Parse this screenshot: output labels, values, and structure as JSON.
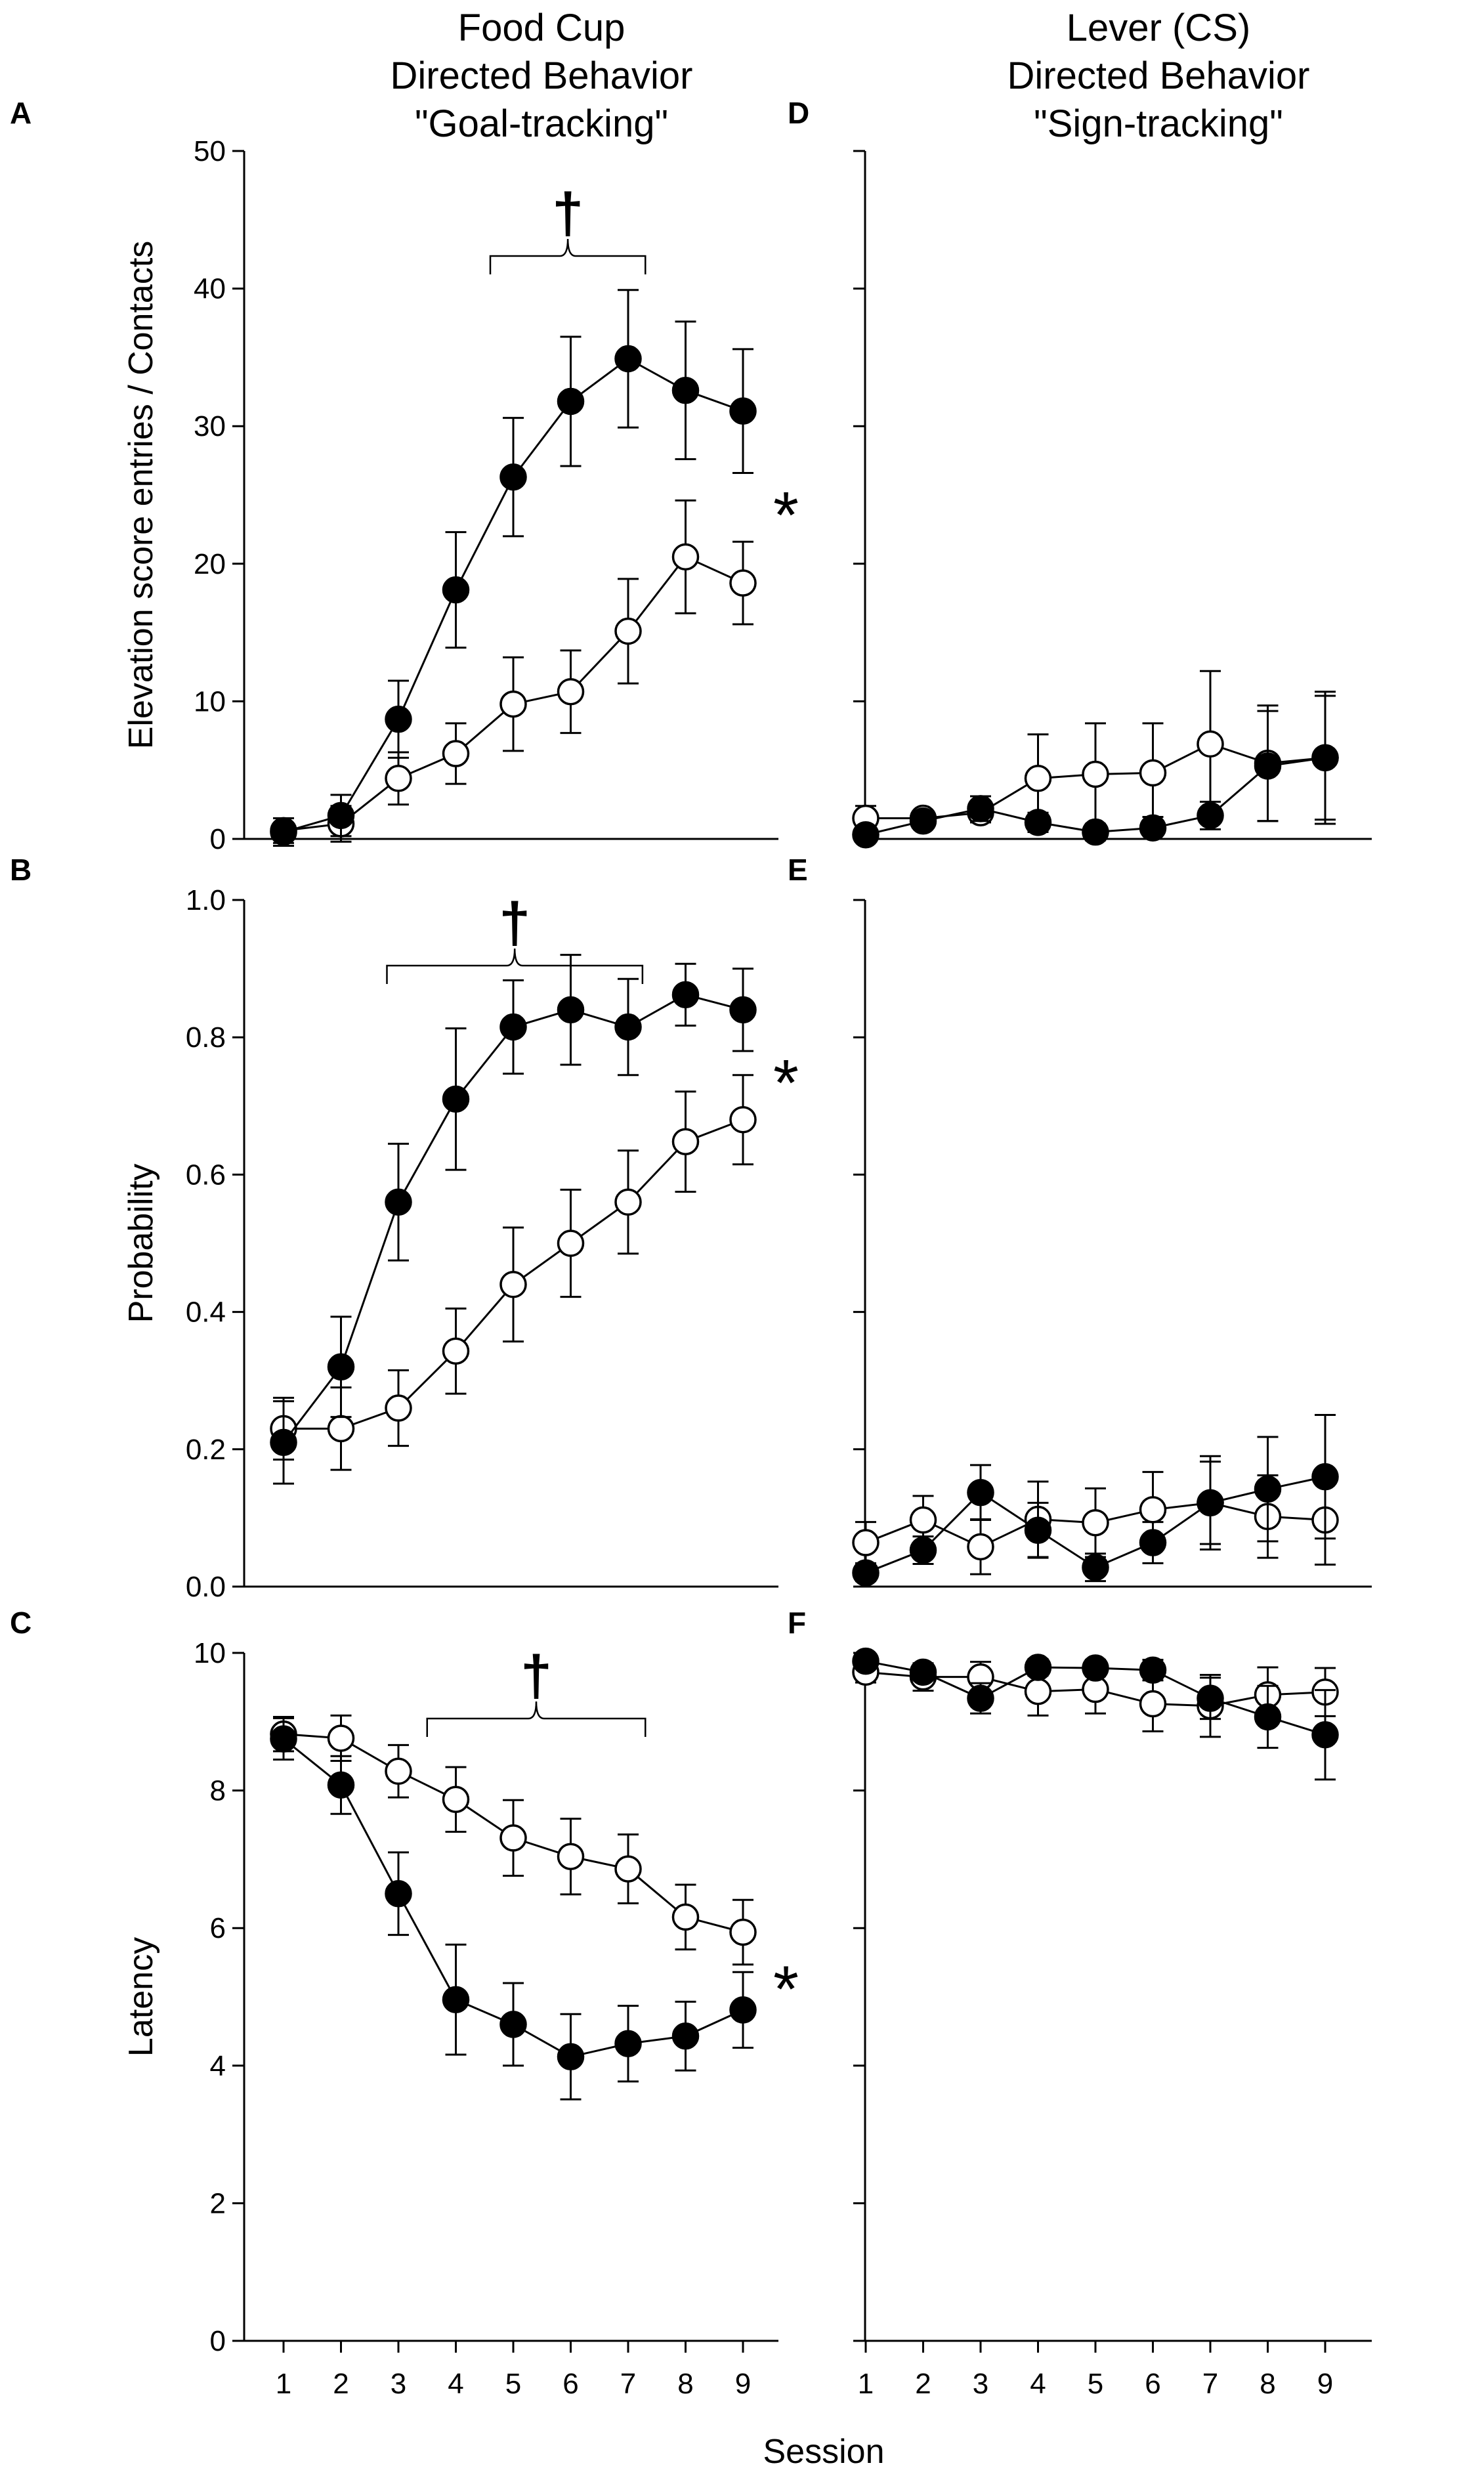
{
  "figure": {
    "column_titles": [
      [
        "Food Cup",
        "Directed Behavior",
        "\"Goal-tracking\""
      ],
      [
        "Lever (CS)",
        "Directed Behavior",
        "\"Sign-tracking\""
      ]
    ],
    "x_axis_label": "Session",
    "series_legend": {
      "filled": "filled circles",
      "open": "open circles"
    },
    "colors": {
      "ink": "#000000",
      "open_fill": "#ffffff",
      "background": "#ffffff"
    }
  },
  "chart_data": [
    {
      "panel": "A",
      "type": "line",
      "ylabel": "Elevation score entries / Contacts",
      "ylim": [
        0,
        50
      ],
      "yticks": [
        0,
        10,
        20,
        30,
        40,
        50
      ],
      "show_tick_labels": true,
      "x": [
        1,
        2,
        3,
        4,
        5,
        6,
        7,
        8,
        9
      ],
      "series": [
        {
          "name": "filled",
          "values": [
            0.5,
            1.7,
            8.7,
            18.1,
            26.3,
            31.8,
            34.9,
            32.6,
            31.1
          ],
          "errors": [
            1.0,
            1.5,
            2.8,
            4.2,
            4.3,
            4.7,
            5.0,
            5.0,
            4.5
          ]
        },
        {
          "name": "open",
          "values": [
            0.6,
            1.1,
            4.4,
            6.2,
            9.8,
            10.7,
            15.1,
            20.5,
            18.6
          ],
          "errors": [
            0.9,
            1.3,
            1.9,
            2.2,
            3.4,
            3.0,
            3.8,
            4.1,
            3.0
          ]
        }
      ],
      "significance": "*",
      "bracket": {
        "label": "†",
        "from_session": 4.6,
        "to_session": 7.3
      }
    },
    {
      "panel": "D",
      "type": "line",
      "ylabel": "",
      "ylim": [
        0,
        50
      ],
      "yticks": [
        0,
        10,
        20,
        30,
        40,
        50
      ],
      "show_tick_labels": false,
      "x": [
        1,
        2,
        3,
        4,
        5,
        6,
        7,
        8,
        9
      ],
      "series": [
        {
          "name": "filled",
          "values": [
            0.3,
            1.3,
            2.2,
            1.2,
            0.5,
            0.8,
            1.7,
            5.3,
            5.9
          ],
          "errors": [
            0.4,
            0.5,
            0.9,
            0.7,
            0.6,
            0.8,
            1.0,
            4.0,
            4.5
          ]
        },
        {
          "name": "open",
          "values": [
            1.5,
            1.5,
            1.9,
            4.4,
            4.7,
            4.8,
            6.9,
            5.5,
            5.9
          ],
          "errors": [
            0.9,
            0.5,
            0.7,
            3.2,
            3.7,
            3.6,
            5.3,
            4.2,
            4.8
          ]
        }
      ]
    },
    {
      "panel": "B",
      "type": "line",
      "ylabel": "Probability",
      "ylim": [
        0,
        1
      ],
      "yticks": [
        "0.0",
        "0.2",
        "0.4",
        "0.6",
        "0.8",
        "1.0"
      ],
      "show_tick_labels": true,
      "x": [
        1,
        2,
        3,
        4,
        5,
        6,
        7,
        8,
        9
      ],
      "series": [
        {
          "name": "filled",
          "values": [
            0.21,
            0.32,
            0.56,
            0.71,
            0.815,
            0.84,
            0.815,
            0.862,
            0.84
          ],
          "errors": [
            0.06,
            0.073,
            0.085,
            0.103,
            0.068,
            0.08,
            0.07,
            0.045,
            0.06
          ]
        },
        {
          "name": "open",
          "values": [
            0.23,
            0.23,
            0.26,
            0.343,
            0.44,
            0.5,
            0.56,
            0.648,
            0.68
          ],
          "errors": [
            0.045,
            0.06,
            0.055,
            0.062,
            0.083,
            0.078,
            0.075,
            0.073,
            0.065
          ]
        }
      ],
      "significance": "*",
      "bracket": {
        "label": "†",
        "from_session": 2.8,
        "to_session": 7.25
      }
    },
    {
      "panel": "E",
      "type": "line",
      "ylabel": "",
      "ylim": [
        0,
        1
      ],
      "yticks": [
        "0.0",
        "0.2",
        "0.4",
        "0.6",
        "0.8",
        "1.0"
      ],
      "show_tick_labels": false,
      "x": [
        1,
        2,
        3,
        4,
        5,
        6,
        7,
        8,
        9
      ],
      "series": [
        {
          "name": "filled",
          "values": [
            0.02,
            0.053,
            0.137,
            0.082,
            0.028,
            0.064,
            0.122,
            0.142,
            0.16
          ],
          "errors": [
            0.012,
            0.02,
            0.04,
            0.04,
            0.02,
            0.03,
            0.068,
            0.076,
            0.09
          ]
        },
        {
          "name": "open",
          "values": [
            0.064,
            0.097,
            0.058,
            0.098,
            0.093,
            0.112,
            0.122,
            0.102,
            0.097
          ],
          "errors": [
            0.03,
            0.035,
            0.04,
            0.055,
            0.05,
            0.055,
            0.06,
            0.06,
            0.065
          ]
        }
      ]
    },
    {
      "panel": "C",
      "type": "line",
      "ylabel": "Latency",
      "ylim": [
        0,
        10
      ],
      "yticks": [
        0,
        2,
        4,
        6,
        8,
        10
      ],
      "show_tick_labels": true,
      "x": [
        1,
        2,
        3,
        4,
        5,
        6,
        7,
        8,
        9
      ],
      "series": [
        {
          "name": "filled",
          "values": [
            8.75,
            8.08,
            6.5,
            4.96,
            4.6,
            4.13,
            4.32,
            4.43,
            4.81
          ],
          "errors": [
            0.3,
            0.42,
            0.6,
            0.8,
            0.6,
            0.62,
            0.55,
            0.5,
            0.55
          ]
        },
        {
          "name": "open",
          "values": [
            8.82,
            8.76,
            8.28,
            7.87,
            7.31,
            7.04,
            6.86,
            6.16,
            5.94
          ],
          "errors": [
            0.25,
            0.33,
            0.38,
            0.47,
            0.55,
            0.55,
            0.5,
            0.47,
            0.47
          ]
        }
      ],
      "significance": "*",
      "bracket": {
        "label": "†",
        "from_session": 3.5,
        "to_session": 7.3
      }
    },
    {
      "panel": "F",
      "type": "line",
      "ylabel": "",
      "ylim": [
        0,
        10
      ],
      "yticks": [
        0,
        2,
        4,
        6,
        8,
        10
      ],
      "show_tick_labels": false,
      "x": [
        1,
        2,
        3,
        4,
        5,
        6,
        7,
        8,
        9
      ],
      "series": [
        {
          "name": "filled",
          "values": [
            9.88,
            9.72,
            9.34,
            9.79,
            9.78,
            9.75,
            9.34,
            9.07,
            8.81
          ],
          "errors": [
            0.1,
            0.12,
            0.22,
            0.12,
            0.12,
            0.15,
            0.3,
            0.45,
            0.65
          ]
        },
        {
          "name": "open",
          "values": [
            9.72,
            9.65,
            9.65,
            9.44,
            9.47,
            9.26,
            9.23,
            9.39,
            9.43
          ],
          "errors": [
            0.15,
            0.2,
            0.22,
            0.35,
            0.35,
            0.4,
            0.45,
            0.4,
            0.35
          ]
        }
      ]
    }
  ]
}
